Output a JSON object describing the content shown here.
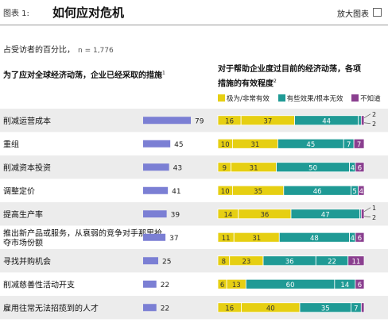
{
  "header": {
    "exhibit_label": "图表 1:",
    "title": "如何应对危机",
    "enlarge_label": "放大图表"
  },
  "subtitle": "占受访者的百分比，",
  "sample_note": "n = 1,776",
  "left_title": "为了应对全球经济动荡，企业已经采取的措施",
  "left_footnote": "1",
  "right_title_line1": "对于帮助企业度过目前的经济动荡，各项",
  "right_title_line2": "措施的有效程度",
  "right_footnote": "2",
  "legend": {
    "very": "极为/非常有效",
    "some": "有些效果/根本无效",
    "dontknow": "不知道"
  },
  "colors": {
    "left_bar": "#7b7fd4",
    "very": "#e6cf12",
    "some": "#1f9a95",
    "dontknow": "#8a3f8f",
    "band": "#ececec"
  },
  "chart_data": [
    {
      "type": "bar",
      "title": "为了应对全球经济动荡，企业已经采取的措施",
      "categories": [
        "削减运营成本",
        "重组",
        "削减资本投资",
        "调整定价",
        "提高生产率",
        "推出新产品或服务，从衰弱的竞争对手那里抢夺市场份额",
        "寻找并购机会",
        "削减慈善性活动开支",
        "雇用往常无法招揽到的人才"
      ],
      "values": [
        79,
        45,
        43,
        41,
        39,
        37,
        25,
        22,
        22
      ]
    },
    {
      "type": "bar",
      "stacked": true,
      "title": "对于帮助企业度过目前的经济动荡，各项措施的有效程度",
      "categories": [
        "削减运营成本",
        "重组",
        "削减资本投资",
        "调整定价",
        "提高生产率",
        "推出新产品或服务，从衰弱的竞争对手那里抢夺市场份额",
        "寻找并购机会",
        "削减慈善性活动开支",
        "雇用往常无法招揽到的人才"
      ],
      "series": [
        {
          "name": "极为/非常有效",
          "values": [
            16,
            10,
            9,
            10,
            14,
            11,
            8,
            6,
            16
          ]
        },
        {
          "name": "",
          "values": [
            37,
            31,
            31,
            35,
            36,
            31,
            23,
            13,
            40
          ]
        },
        {
          "name": "有些效果/根本无效",
          "values": [
            44,
            45,
            50,
            46,
            47,
            48,
            36,
            60,
            35
          ]
        },
        {
          "name": "",
          "values": [
            2,
            7,
            4,
            5,
            1,
            4,
            22,
            14,
            7
          ]
        },
        {
          "name": "不知道",
          "values": [
            2,
            7,
            6,
            4,
            2,
            6,
            11,
            6,
            2
          ]
        }
      ],
      "xlim": [
        0,
        100
      ]
    }
  ]
}
